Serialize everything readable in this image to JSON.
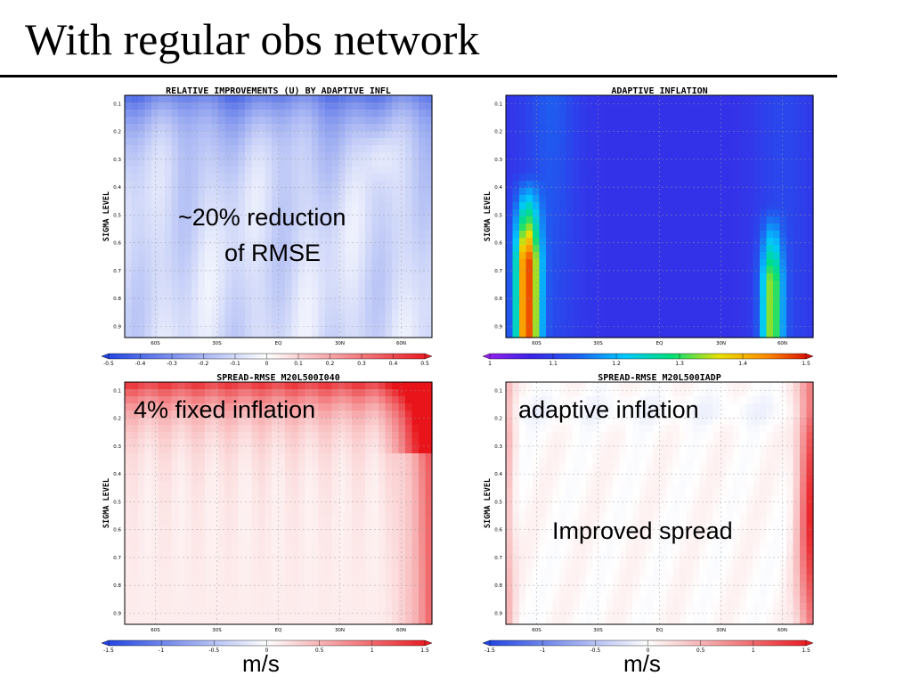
{
  "slide": {
    "title": "With regular obs network",
    "annotations": {
      "reduction_line1": "~20% reduction",
      "reduction_line2": "of RMSE",
      "fixed_inflation": "4% fixed inflation",
      "adaptive_inflation": "adaptive inflation",
      "improved_spread": "Improved spread"
    },
    "units": {
      "left": "m/s",
      "right": "m/s"
    }
  },
  "colors": {
    "blue": "#1a3fe0",
    "white": "#ffffff",
    "red": "#e8141a",
    "rainbow": [
      "#a020f0",
      "#3c22e6",
      "#1e5ff0",
      "#00c8ff",
      "#00e07a",
      "#e8e000",
      "#ff8c00",
      "#d40000"
    ]
  },
  "chart_data": [
    {
      "type": "heatmap",
      "title": "RELATIVE IMPROVEMENTS (U) BY ADAPTIVE INFL",
      "ylabel": "SIGMA LEVEL",
      "xticks": [
        "60S",
        "30S",
        "EQ",
        "30N",
        "60N"
      ],
      "yticks": [
        "0.1",
        "0.2",
        "0.3",
        "0.4",
        "0.5",
        "0.6",
        "0.7",
        "0.8",
        "0.9"
      ],
      "colorbar": {
        "ticks": [
          "-0.5",
          "-0.4",
          "-0.3",
          "-0.2",
          "-0.1",
          "0",
          "0.1",
          "0.2",
          "0.3",
          "0.4",
          "0.5"
        ],
        "range": [
          -0.5,
          0.5
        ],
        "scheme": "diverging"
      }
    },
    {
      "type": "heatmap",
      "title": "ADAPTIVE INFLATION",
      "ylabel": "SIGMA LEVEL",
      "xticks": [
        "60S",
        "30S",
        "EQ",
        "30N",
        "60N"
      ],
      "yticks": [
        "0.1",
        "0.2",
        "0.3",
        "0.4",
        "0.5",
        "0.6",
        "0.7",
        "0.8",
        "0.9"
      ],
      "colorbar": {
        "ticks": [
          "1",
          "1.1",
          "1.2",
          "1.3",
          "1.4",
          "1.5"
        ],
        "range": [
          1,
          1.5
        ],
        "scheme": "rainbow"
      }
    },
    {
      "type": "heatmap",
      "title": "SPREAD-RMSE M20L500I040",
      "ylabel": "SIGMA LEVEL",
      "xticks": [
        "60S",
        "30S",
        "EQ",
        "30N",
        "60N"
      ],
      "yticks": [
        "0.1",
        "0.2",
        "0.3",
        "0.4",
        "0.5",
        "0.6",
        "0.7",
        "0.8",
        "0.9"
      ],
      "colorbar": {
        "ticks": [
          "-1.5",
          "-1",
          "-0.5",
          "0",
          "0.5",
          "1",
          "1.5"
        ],
        "range": [
          -1.5,
          1.5
        ],
        "scheme": "diverging"
      }
    },
    {
      "type": "heatmap",
      "title": "SPREAD-RMSE M20L500IADP",
      "ylabel": "SIGMA LEVEL",
      "xticks": [
        "60S",
        "30S",
        "EQ",
        "30N",
        "60N"
      ],
      "yticks": [
        "0.1",
        "0.2",
        "0.3",
        "0.4",
        "0.5",
        "0.6",
        "0.7",
        "0.8",
        "0.9"
      ],
      "colorbar": {
        "ticks": [
          "-1.5",
          "-1",
          "-0.5",
          "0",
          "0.5",
          "1",
          "1.5"
        ],
        "range": [
          -1.5,
          1.5
        ],
        "scheme": "diverging"
      }
    }
  ]
}
